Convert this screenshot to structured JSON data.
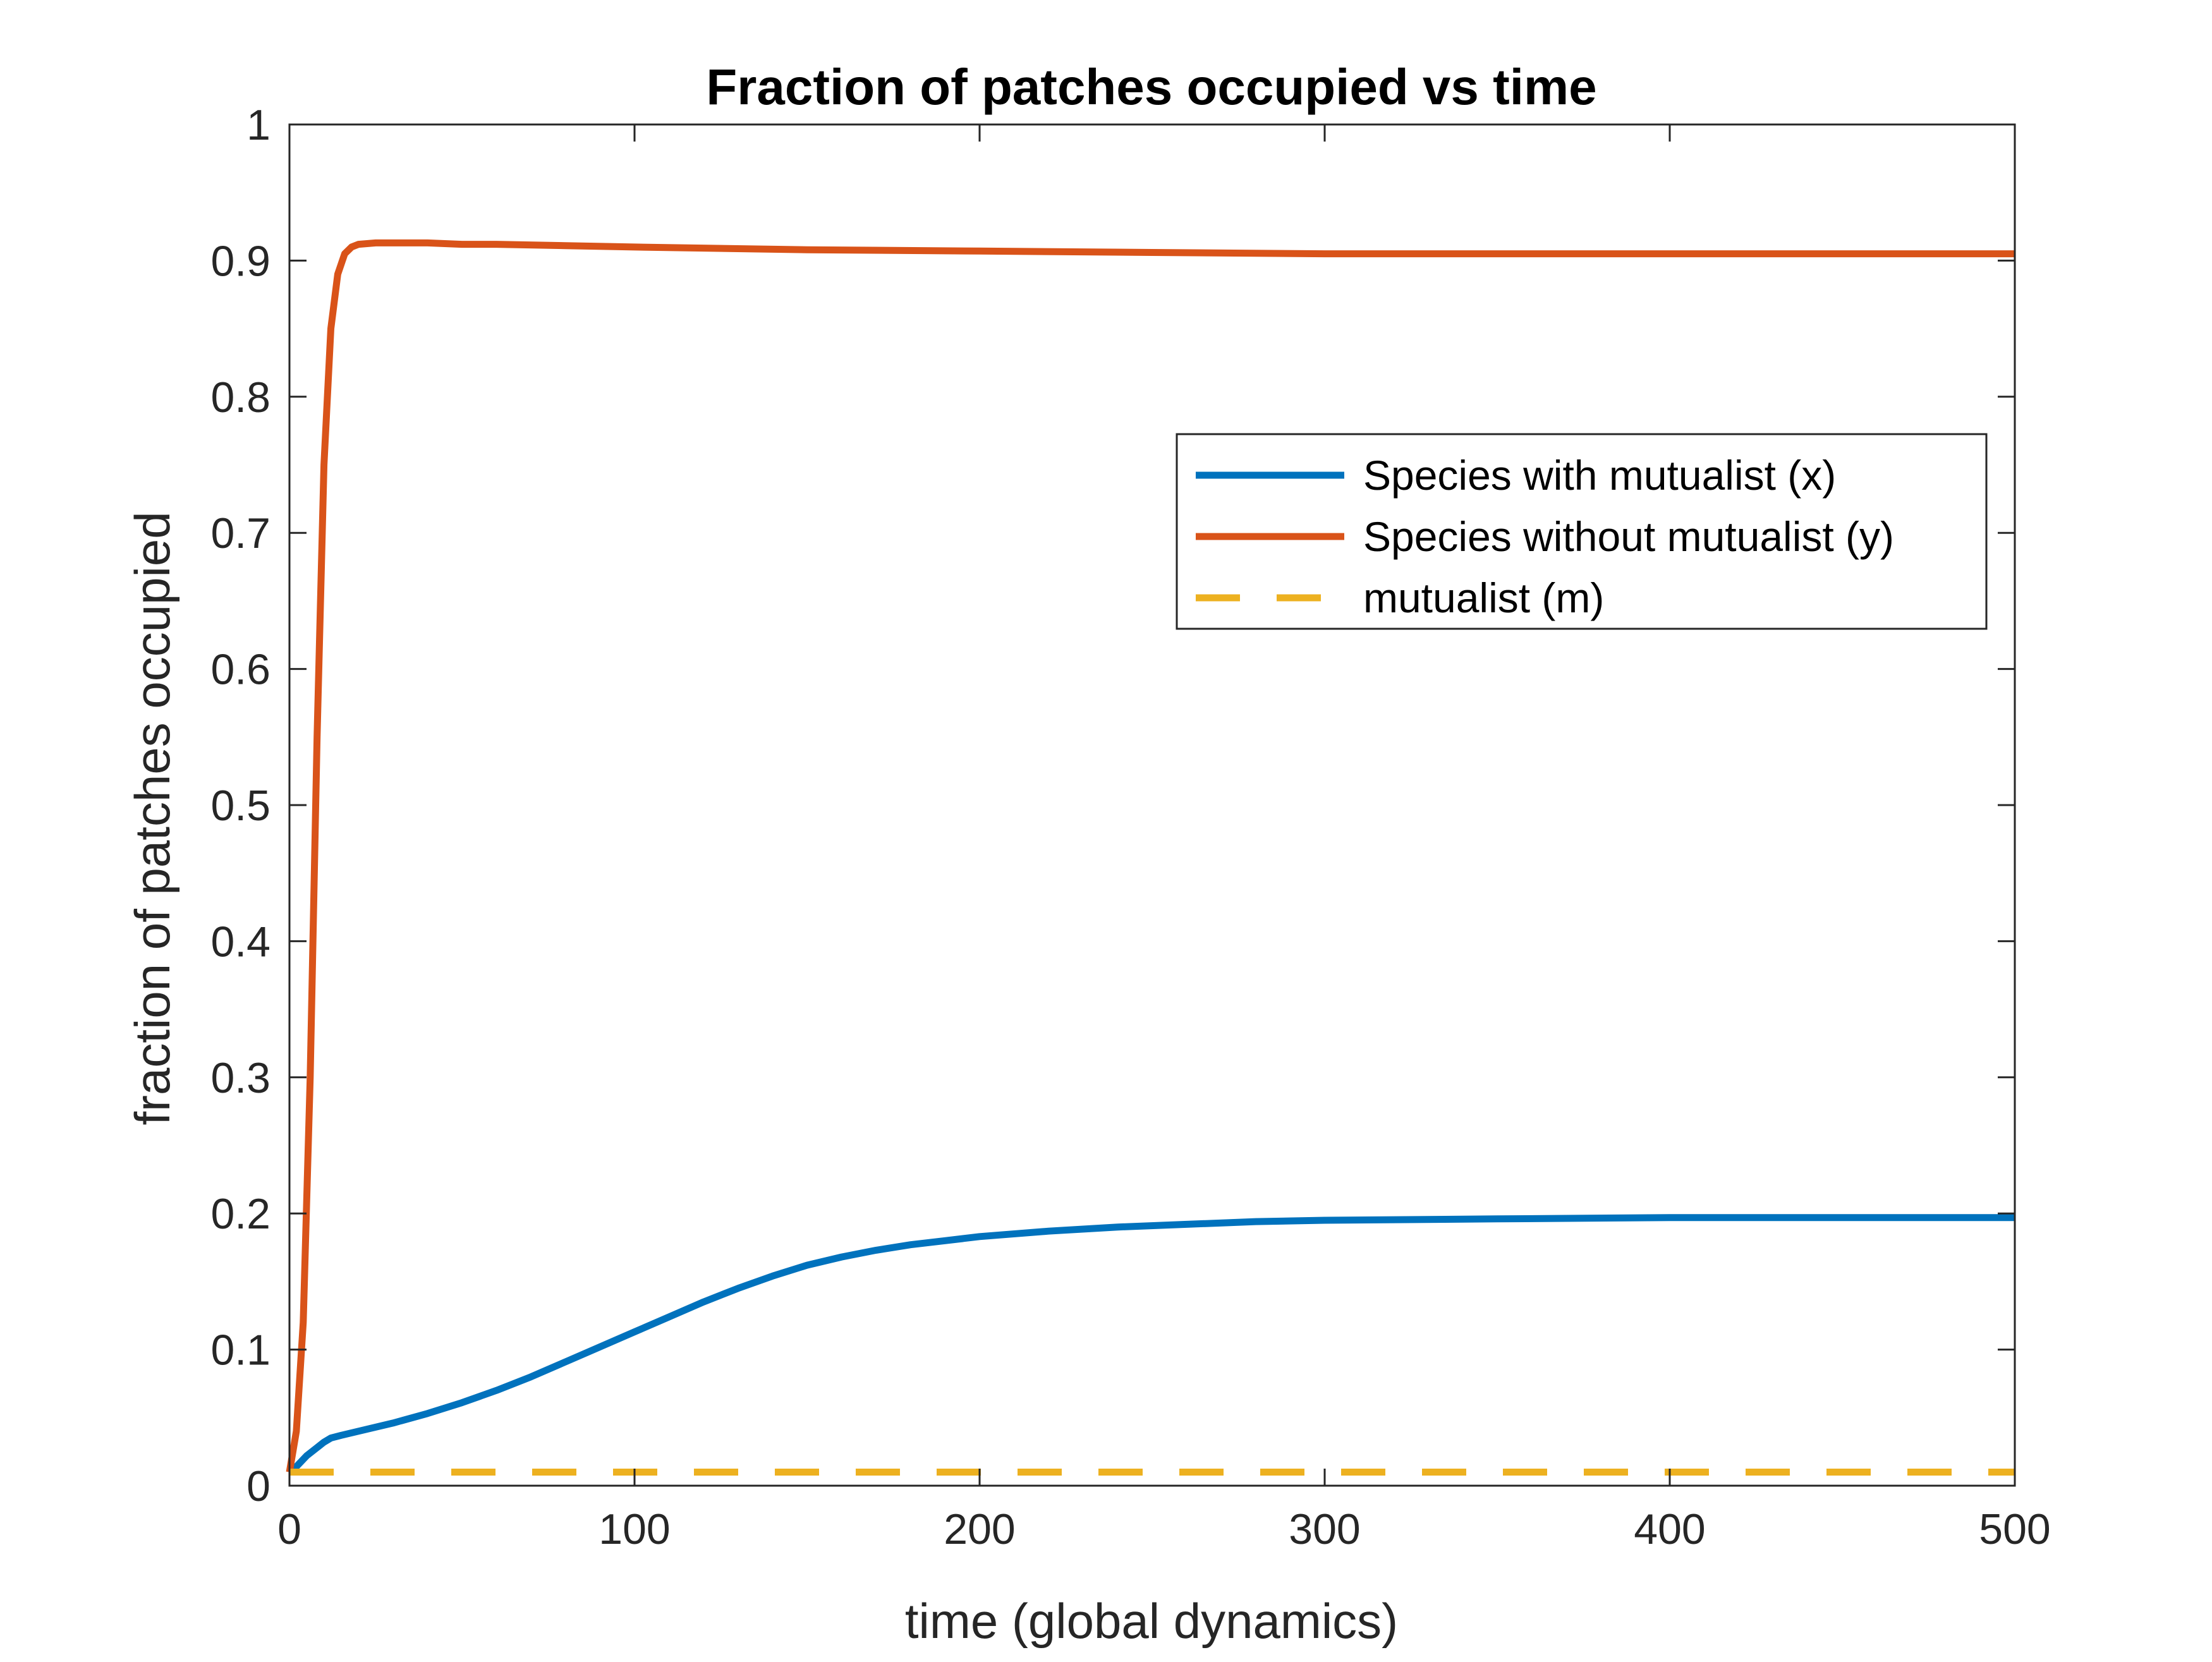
{
  "chart_data": {
    "type": "line",
    "title": "Fraction of patches occupied vs time",
    "xlabel": "time (global dynamics)",
    "ylabel": "fraction of patches occupied",
    "xlim": [
      0,
      500
    ],
    "ylim": [
      0,
      1
    ],
    "xticks": [
      0,
      100,
      200,
      300,
      400,
      500
    ],
    "xtick_labels": [
      "0",
      "100",
      "200",
      "300",
      "400",
      "500"
    ],
    "yticks": [
      0,
      0.1,
      0.2,
      0.3,
      0.4,
      0.5,
      0.6,
      0.7,
      0.8,
      0.9,
      1
    ],
    "ytick_labels": [
      "0",
      "0.1",
      "0.2",
      "0.3",
      "0.4",
      "0.5",
      "0.6",
      "0.7",
      "0.8",
      "0.9",
      "1"
    ],
    "grid": false,
    "legend_position": "upper-right",
    "series": [
      {
        "name": "Species with mutualist (x)",
        "color": "#0072BD",
        "style": "solid",
        "x": [
          0,
          2,
          5,
          8,
          10,
          12,
          15,
          20,
          30,
          40,
          50,
          60,
          70,
          80,
          90,
          100,
          110,
          120,
          130,
          140,
          150,
          160,
          170,
          180,
          190,
          200,
          220,
          240,
          260,
          280,
          300,
          350,
          400,
          450,
          500
        ],
        "y": [
          0.01,
          0.014,
          0.022,
          0.028,
          0.032,
          0.035,
          0.037,
          0.04,
          0.046,
          0.053,
          0.061,
          0.07,
          0.08,
          0.091,
          0.102,
          0.113,
          0.124,
          0.135,
          0.145,
          0.154,
          0.162,
          0.168,
          0.173,
          0.177,
          0.18,
          0.183,
          0.187,
          0.19,
          0.192,
          0.194,
          0.195,
          0.196,
          0.197,
          0.197,
          0.197
        ]
      },
      {
        "name": "Species without mutualist (y)",
        "color": "#D95319",
        "style": "solid",
        "x": [
          0,
          2,
          4,
          6,
          8,
          10,
          12,
          14,
          16,
          18,
          20,
          25,
          30,
          40,
          50,
          60,
          80,
          100,
          150,
          200,
          250,
          300,
          350,
          400,
          450,
          500
        ],
        "y": [
          0.01,
          0.04,
          0.12,
          0.3,
          0.55,
          0.75,
          0.85,
          0.89,
          0.905,
          0.91,
          0.912,
          0.913,
          0.913,
          0.913,
          0.912,
          0.912,
          0.911,
          0.91,
          0.908,
          0.907,
          0.906,
          0.905,
          0.905,
          0.905,
          0.905,
          0.905
        ]
      },
      {
        "name": "mutualist (m)",
        "color": "#EDB120",
        "style": "dashed",
        "x": [
          0,
          500
        ],
        "y": [
          0.01,
          0.01
        ]
      }
    ]
  }
}
